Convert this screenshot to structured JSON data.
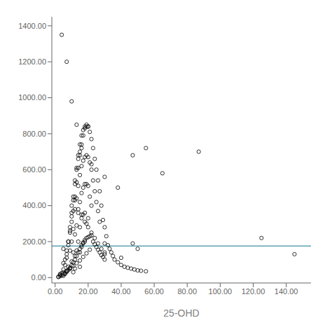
{
  "chart_data": {
    "type": "scatter",
    "xlabel": "25-OHD",
    "color": "black",
    "marker": "open_circle",
    "grid": false,
    "xlim": [
      -2,
      155
    ],
    "ylim": [
      -30,
      1450
    ],
    "xticks": [
      {
        "value": 0,
        "label": "0.00"
      },
      {
        "value": 20,
        "label": "20.00"
      },
      {
        "value": 40,
        "label": "40.00"
      },
      {
        "value": 60,
        "label": "60.00"
      },
      {
        "value": 80,
        "label": "80.00"
      },
      {
        "value": 100,
        "label": "100.00"
      },
      {
        "value": 120,
        "label": "120.00"
      },
      {
        "value": 140,
        "label": "140.00"
      }
    ],
    "yticks": [
      {
        "value": 0,
        "label": "0.00"
      },
      {
        "value": 200,
        "label": "200.00"
      },
      {
        "value": 400,
        "label": "400.00"
      },
      {
        "value": 600,
        "label": "600.00"
      },
      {
        "value": 800,
        "label": "800.00"
      },
      {
        "value": 1000,
        "label": "1000.00"
      },
      {
        "value": 1200,
        "label": "1200.00"
      },
      {
        "value": 1400,
        "label": "1400.00"
      }
    ],
    "hline": {
      "y": 175,
      "color": "#5ba3b0"
    },
    "x": [
      2,
      3,
      4,
      5,
      5,
      6,
      6,
      7,
      7,
      8,
      8,
      9,
      9,
      9,
      10,
      10,
      10,
      11,
      11,
      11,
      11,
      12,
      12,
      12,
      12,
      12,
      13,
      13,
      13,
      13,
      14,
      14,
      14,
      14,
      15,
      15,
      15,
      15,
      15,
      15,
      16,
      16,
      16,
      16,
      16,
      17,
      17,
      17,
      17,
      17,
      18,
      18,
      18,
      18,
      18,
      19,
      19,
      19,
      19,
      20,
      20,
      20,
      20,
      21,
      21,
      21,
      22,
      22,
      22,
      23,
      23,
      24,
      24,
      25,
      25,
      26,
      26,
      27,
      27,
      28,
      29,
      30,
      30,
      31,
      32,
      33,
      34,
      35,
      36,
      38,
      40,
      42,
      44,
      46,
      48,
      50,
      52,
      55,
      4,
      7,
      10,
      13,
      16,
      22,
      30,
      38,
      47,
      55,
      65,
      87,
      125,
      145,
      5,
      7,
      8,
      9,
      10,
      11,
      12,
      13,
      14,
      15,
      16,
      17,
      18,
      19,
      20,
      5,
      6,
      7,
      8,
      9,
      10,
      11,
      12,
      13,
      14,
      15,
      2,
      3,
      4,
      5,
      6,
      7,
      8,
      9,
      10,
      11,
      12,
      13,
      14,
      15,
      16,
      17,
      18,
      19,
      20,
      21,
      22,
      23,
      24,
      25,
      26,
      27,
      28,
      29,
      30,
      10,
      12,
      14,
      16,
      18,
      20,
      22,
      24,
      26,
      28,
      30,
      3,
      5,
      7,
      9,
      11,
      13,
      15,
      17,
      19,
      21,
      47,
      50,
      30,
      40
    ],
    "values": [
      5,
      15,
      25,
      45,
      10,
      70,
      20,
      110,
      35,
      180,
      60,
      260,
      150,
      50,
      340,
      200,
      90,
      430,
      270,
      140,
      30,
      520,
      380,
      240,
      120,
      50,
      600,
      440,
      290,
      150,
      680,
      510,
      360,
      200,
      740,
      570,
      420,
      280,
      140,
      60,
      790,
      620,
      470,
      330,
      170,
      820,
      650,
      500,
      350,
      190,
      840,
      670,
      520,
      360,
      200,
      850,
      680,
      520,
      300,
      840,
      670,
      510,
      330,
      810,
      640,
      450,
      770,
      600,
      400,
      720,
      540,
      660,
      480,
      600,
      420,
      540,
      370,
      480,
      310,
      400,
      320,
      280,
      190,
      230,
      180,
      160,
      140,
      120,
      100,
      85,
      70,
      60,
      55,
      50,
      45,
      40,
      38,
      35,
      1350,
      1200,
      980,
      850,
      720,
      630,
      560,
      500,
      680,
      720,
      580,
      700,
      220,
      130,
      160,
      130,
      200,
      250,
      310,
      370,
      450,
      530,
      610,
      680,
      740,
      790,
      830,
      840,
      840,
      80,
      100,
      150,
      200,
      280,
      360,
      450,
      540,
      610,
      660,
      700,
      3,
      8,
      12,
      18,
      25,
      32,
      42,
      55,
      68,
      85,
      100,
      120,
      140,
      160,
      180,
      195,
      210,
      220,
      225,
      230,
      235,
      200,
      185,
      170,
      155,
      140,
      125,
      115,
      100,
      400,
      430,
      380,
      350,
      310,
      280,
      250,
      220,
      190,
      160,
      140,
      20,
      28,
      38,
      50,
      65,
      80,
      95,
      115,
      135,
      155,
      190,
      160,
      130,
      110
    ]
  }
}
